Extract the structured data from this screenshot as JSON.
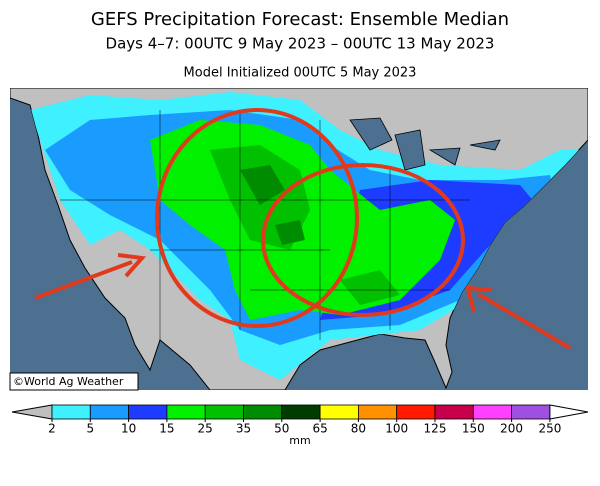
{
  "header": {
    "title": "GEFS Precipitation Forecast: Ensemble Median",
    "subtitle": "Days 4–7: 00UTC 9 May 2023 – 00UTC 13 May 2023",
    "init": "Model Initialized 00UTC 5 May 2023"
  },
  "map": {
    "credit": "©World Ag Weather"
  },
  "colorbar": {
    "unit": "mm",
    "ticks": [
      2,
      5,
      10,
      15,
      25,
      35,
      50,
      65,
      80,
      100,
      125,
      150,
      200,
      250
    ],
    "colors": [
      "#3ff0ff",
      "#1a9cff",
      "#1e3cff",
      "#00f000",
      "#00c000",
      "#008c00",
      "#003c00",
      "#ffff00",
      "#ff9000",
      "#ff1a00",
      "#c8004c",
      "#ff40ff",
      "#a050e0"
    ],
    "under_color": "#bfbfbf",
    "over_color": "#ffffff"
  }
}
